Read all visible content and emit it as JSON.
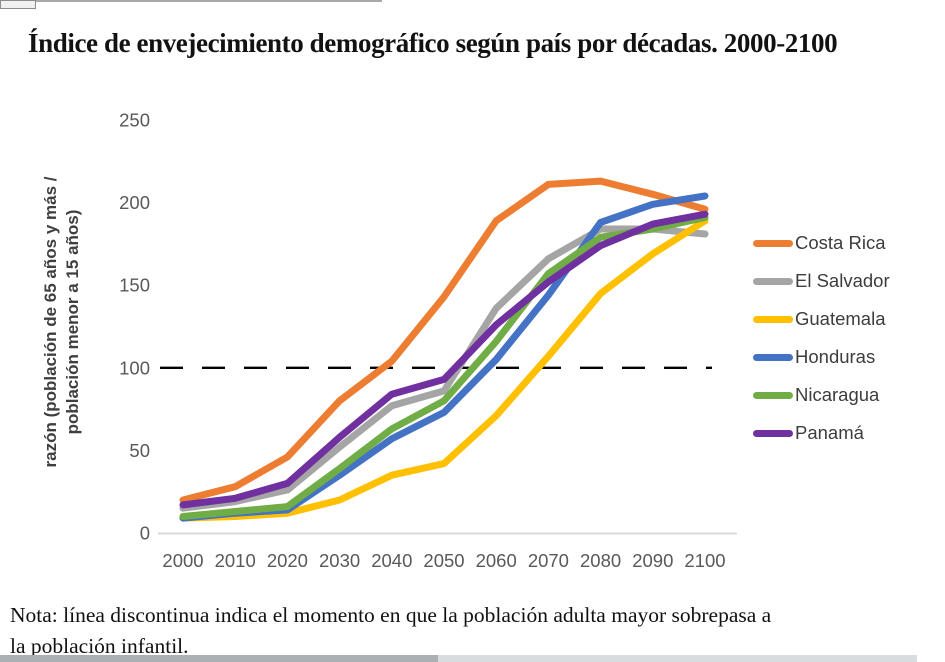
{
  "title": "Índice de envejecimiento demográfico según país por décadas. 2000-2100",
  "note": {
    "line1": "Nota: línea discontinua indica el momento en que la población adulta mayor sobrepasa a",
    "line2": "la población infantil."
  },
  "chart_data": {
    "type": "line",
    "title": "Índice de envejecimiento demográfico según país por décadas. 2000-2100",
    "xlabel": "",
    "ylabel": "razón (población de 65 años y más / población menor a 15 años)",
    "ylabel_lines": [
      "razón (población de 65 años y más /",
      "población menor a 15 años)"
    ],
    "x": [
      2000,
      2010,
      2020,
      2030,
      2040,
      2050,
      2060,
      2070,
      2080,
      2090,
      2100
    ],
    "yticks": [
      0,
      50,
      100,
      150,
      200,
      250
    ],
    "ylim": [
      0,
      250
    ],
    "grid": false,
    "legend_position": "right",
    "reference_line": {
      "y": 100,
      "style": "dashed",
      "color": "#000000"
    },
    "series": [
      {
        "name": "Costa Rica",
        "color": "#ED7D31",
        "values": [
          20,
          28,
          46,
          80,
          104,
          143,
          189,
          211,
          213,
          205,
          196
        ]
      },
      {
        "name": "El Salvador",
        "color": "#A5A5A5",
        "values": [
          15,
          19,
          26,
          52,
          77,
          86,
          136,
          166,
          184,
          184,
          181
        ]
      },
      {
        "name": "Guatemala",
        "color": "#FFC000",
        "values": [
          9,
          10,
          12,
          20,
          35,
          42,
          71,
          107,
          145,
          169,
          189
        ]
      },
      {
        "name": "Honduras",
        "color": "#4472C4",
        "values": [
          9,
          12,
          14,
          35,
          57,
          73,
          105,
          144,
          188,
          199,
          204
        ]
      },
      {
        "name": "Nicaragua",
        "color": "#70AD47",
        "values": [
          10,
          13,
          16,
          39,
          63,
          80,
          116,
          157,
          179,
          184,
          191
        ]
      },
      {
        "name": "Panamá",
        "color": "#7030A0",
        "values": [
          17,
          21,
          30,
          58,
          84,
          93,
          126,
          152,
          174,
          187,
          193
        ]
      }
    ]
  }
}
